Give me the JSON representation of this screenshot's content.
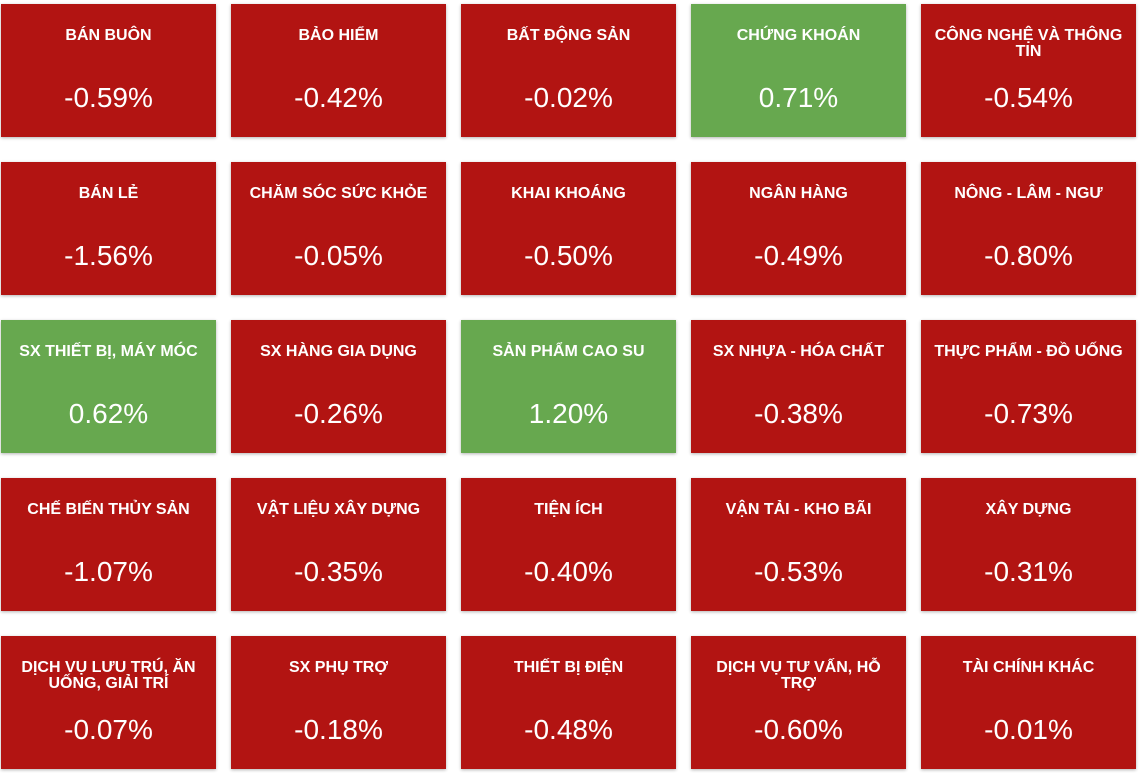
{
  "tiles": [
    {
      "name": "BÁN BUÔN",
      "change": "-0.59%",
      "color": "#b21412"
    },
    {
      "name": "BẢO HIỂM",
      "change": "-0.42%",
      "color": "#b21412"
    },
    {
      "name": "BẤT ĐỘNG SẢN",
      "change": "-0.02%",
      "color": "#b21412"
    },
    {
      "name": "CHỨNG KHOÁN",
      "change": "0.71%",
      "color": "#67a84f"
    },
    {
      "name": "CÔNG NGHỆ VÀ THÔNG TIN",
      "change": "-0.54%",
      "color": "#b21412"
    },
    {
      "name": "BÁN LẺ",
      "change": "-1.56%",
      "color": "#b21412"
    },
    {
      "name": "CHĂM SÓC SỨC KHỎE",
      "change": "-0.05%",
      "color": "#b21412"
    },
    {
      "name": "KHAI KHOÁNG",
      "change": "-0.50%",
      "color": "#b21412"
    },
    {
      "name": "NGÂN HÀNG",
      "change": "-0.49%",
      "color": "#b21412"
    },
    {
      "name": "NÔNG - LÂM - NGƯ",
      "change": "-0.80%",
      "color": "#b21412"
    },
    {
      "name": "SX THIẾT BỊ, MÁY MÓC",
      "change": "0.62%",
      "color": "#67a84f"
    },
    {
      "name": "SX HÀNG GIA DỤNG",
      "change": "-0.26%",
      "color": "#b21412"
    },
    {
      "name": "SẢN PHẨM CAO SU",
      "change": "1.20%",
      "color": "#67a84f"
    },
    {
      "name": "SX NHỰA - HÓA CHẤT",
      "change": "-0.38%",
      "color": "#b21412"
    },
    {
      "name": "THỰC PHẨM - ĐỒ UỐNG",
      "change": "-0.73%",
      "color": "#b21412"
    },
    {
      "name": "CHẾ BIẾN THỦY SẢN",
      "change": "-1.07%",
      "color": "#b21412"
    },
    {
      "name": "VẬT LIỆU XÂY DỰNG",
      "change": "-0.35%",
      "color": "#b21412"
    },
    {
      "name": "TIỆN ÍCH",
      "change": "-0.40%",
      "color": "#b21412"
    },
    {
      "name": "VẬN TẢI - KHO BÃI",
      "change": "-0.53%",
      "color": "#b21412"
    },
    {
      "name": "XÂY DỰNG",
      "change": "-0.31%",
      "color": "#b21412"
    },
    {
      "name": "DỊCH VỤ LƯU TRÚ, ĂN UỐNG, GIẢI TRÍ",
      "change": "-0.07%",
      "color": "#b21412"
    },
    {
      "name": "SX PHỤ TRỢ",
      "change": "-0.18%",
      "color": "#b21412"
    },
    {
      "name": "THIẾT BỊ ĐIỆN",
      "change": "-0.48%",
      "color": "#b21412"
    },
    {
      "name": "DỊCH VỤ TƯ VẤN, HỖ TRỢ",
      "change": "-0.60%",
      "color": "#b21412"
    },
    {
      "name": "TÀI CHÍNH KHÁC",
      "change": "-0.01%",
      "color": "#b21412"
    }
  ]
}
